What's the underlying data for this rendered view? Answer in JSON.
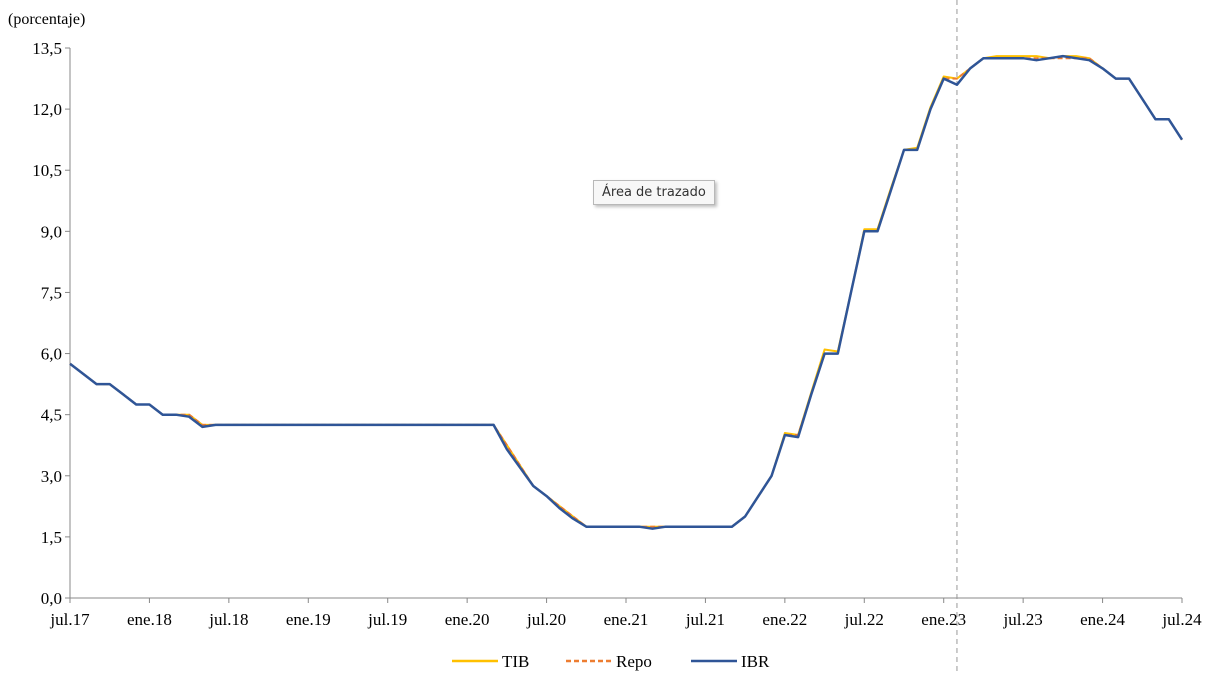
{
  "chart_data": {
    "type": "line",
    "unit_label": "(porcentaje)",
    "ylim": [
      0,
      13.5
    ],
    "y_ticks": [
      "0,0",
      "1,5",
      "3,0",
      "4,5",
      "6,0",
      "7,5",
      "9,0",
      "10,5",
      "12,0",
      "13,5"
    ],
    "y_tick_values": [
      0,
      1.5,
      3.0,
      4.5,
      6.0,
      7.5,
      9.0,
      10.5,
      12.0,
      13.5
    ],
    "x_ticks": [
      "jul.17",
      "ene.18",
      "jul.18",
      "ene.19",
      "jul.19",
      "ene.20",
      "jul.20",
      "ene.21",
      "jul.21",
      "ene.22",
      "jul.22",
      "ene.23",
      "jul.23",
      "ene.24",
      "jul.24"
    ],
    "x_range_months": "jul.17 – jul.24",
    "grid": false,
    "legend_position": "bottom",
    "reference_line": {
      "label": "",
      "x": "feb.23"
    },
    "x_dates": [
      "2017-07",
      "2017-08",
      "2017-09",
      "2017-10",
      "2017-11",
      "2017-12",
      "2018-01",
      "2018-02",
      "2018-03",
      "2018-04",
      "2018-05",
      "2018-06",
      "2018-07",
      "2018-08",
      "2018-09",
      "2018-10",
      "2018-11",
      "2018-12",
      "2019-01",
      "2019-02",
      "2019-03",
      "2019-04",
      "2019-05",
      "2019-06",
      "2019-07",
      "2019-08",
      "2019-09",
      "2019-10",
      "2019-11",
      "2019-12",
      "2020-01",
      "2020-02",
      "2020-03",
      "2020-04",
      "2020-05",
      "2020-06",
      "2020-07",
      "2020-08",
      "2020-09",
      "2020-10",
      "2020-11",
      "2020-12",
      "2021-01",
      "2021-02",
      "2021-03",
      "2021-04",
      "2021-05",
      "2021-06",
      "2021-07",
      "2021-08",
      "2021-09",
      "2021-10",
      "2021-11",
      "2021-12",
      "2022-01",
      "2022-02",
      "2022-03",
      "2022-04",
      "2022-05",
      "2022-06",
      "2022-07",
      "2022-08",
      "2022-09",
      "2022-10",
      "2022-11",
      "2022-12",
      "2023-01",
      "2023-02",
      "2023-03",
      "2023-04",
      "2023-05",
      "2023-06",
      "2023-07",
      "2023-08",
      "2023-09",
      "2023-10",
      "2023-11",
      "2023-12",
      "2024-01",
      "2024-02",
      "2024-03",
      "2024-04",
      "2024-05",
      "2024-06",
      "2024-07"
    ],
    "series": [
      {
        "name": "TIB",
        "color": "#FFC000",
        "style": "solid",
        "values": [
          5.75,
          5.5,
          5.25,
          5.25,
          5.0,
          4.75,
          4.75,
          4.5,
          4.5,
          4.5,
          4.25,
          4.25,
          4.25,
          4.25,
          4.25,
          4.25,
          4.25,
          4.25,
          4.25,
          4.25,
          4.25,
          4.25,
          4.25,
          4.25,
          4.25,
          4.25,
          4.25,
          4.25,
          4.25,
          4.25,
          4.25,
          4.25,
          4.25,
          3.75,
          3.25,
          2.75,
          2.5,
          2.25,
          2.0,
          1.75,
          1.75,
          1.75,
          1.75,
          1.75,
          1.75,
          1.75,
          1.75,
          1.75,
          1.75,
          1.75,
          1.75,
          2.0,
          2.5,
          3.0,
          4.05,
          4.0,
          5.05,
          6.1,
          6.05,
          7.5,
          9.05,
          9.05,
          10.05,
          11.0,
          11.05,
          12.05,
          12.8,
          12.75,
          13.0,
          13.25,
          13.3,
          13.3,
          13.3,
          13.3,
          13.25,
          13.3,
          13.3,
          13.25,
          13.0,
          12.75,
          12.75,
          12.25,
          11.75,
          11.75,
          11.25
        ]
      },
      {
        "name": "Repo",
        "color": "#ED7D31",
        "style": "dashed",
        "values": [
          5.75,
          5.5,
          5.25,
          5.25,
          5.0,
          4.75,
          4.75,
          4.5,
          4.5,
          4.5,
          4.25,
          4.25,
          4.25,
          4.25,
          4.25,
          4.25,
          4.25,
          4.25,
          4.25,
          4.25,
          4.25,
          4.25,
          4.25,
          4.25,
          4.25,
          4.25,
          4.25,
          4.25,
          4.25,
          4.25,
          4.25,
          4.25,
          4.25,
          3.75,
          3.25,
          2.75,
          2.5,
          2.25,
          2.0,
          1.75,
          1.75,
          1.75,
          1.75,
          1.75,
          1.75,
          1.75,
          1.75,
          1.75,
          1.75,
          1.75,
          1.75,
          2.0,
          2.5,
          3.0,
          4.0,
          4.0,
          5.0,
          6.0,
          6.0,
          7.5,
          9.0,
          9.0,
          10.0,
          11.0,
          11.0,
          12.0,
          12.75,
          12.75,
          13.0,
          13.25,
          13.25,
          13.25,
          13.25,
          13.25,
          13.25,
          13.25,
          13.25,
          13.25,
          13.0,
          12.75,
          12.75,
          12.25,
          11.75,
          11.75,
          11.25
        ]
      },
      {
        "name": "IBR",
        "color": "#2F5597",
        "style": "solid",
        "values": [
          5.75,
          5.5,
          5.25,
          5.25,
          5.0,
          4.75,
          4.75,
          4.5,
          4.5,
          4.45,
          4.2,
          4.25,
          4.25,
          4.25,
          4.25,
          4.25,
          4.25,
          4.25,
          4.25,
          4.25,
          4.25,
          4.25,
          4.25,
          4.25,
          4.25,
          4.25,
          4.25,
          4.25,
          4.25,
          4.25,
          4.25,
          4.25,
          4.25,
          3.65,
          3.2,
          2.75,
          2.5,
          2.2,
          1.95,
          1.75,
          1.75,
          1.75,
          1.75,
          1.75,
          1.7,
          1.75,
          1.75,
          1.75,
          1.75,
          1.75,
          1.75,
          2.0,
          2.5,
          3.0,
          4.0,
          3.95,
          5.0,
          6.0,
          6.0,
          7.5,
          9.0,
          9.0,
          10.0,
          11.0,
          11.0,
          12.0,
          12.75,
          12.6,
          13.0,
          13.25,
          13.25,
          13.25,
          13.25,
          13.2,
          13.25,
          13.3,
          13.25,
          13.2,
          13.0,
          12.75,
          12.75,
          12.25,
          11.75,
          11.75,
          11.25
        ]
      }
    ],
    "legend": [
      {
        "name": "TIB",
        "color": "#FFC000",
        "style": "solid"
      },
      {
        "name": "Repo",
        "color": "#ED7D31",
        "style": "dashed"
      },
      {
        "name": "IBR",
        "color": "#2F5597",
        "style": "solid"
      }
    ]
  },
  "ui": {
    "tooltip_text": "Área de trazado"
  }
}
